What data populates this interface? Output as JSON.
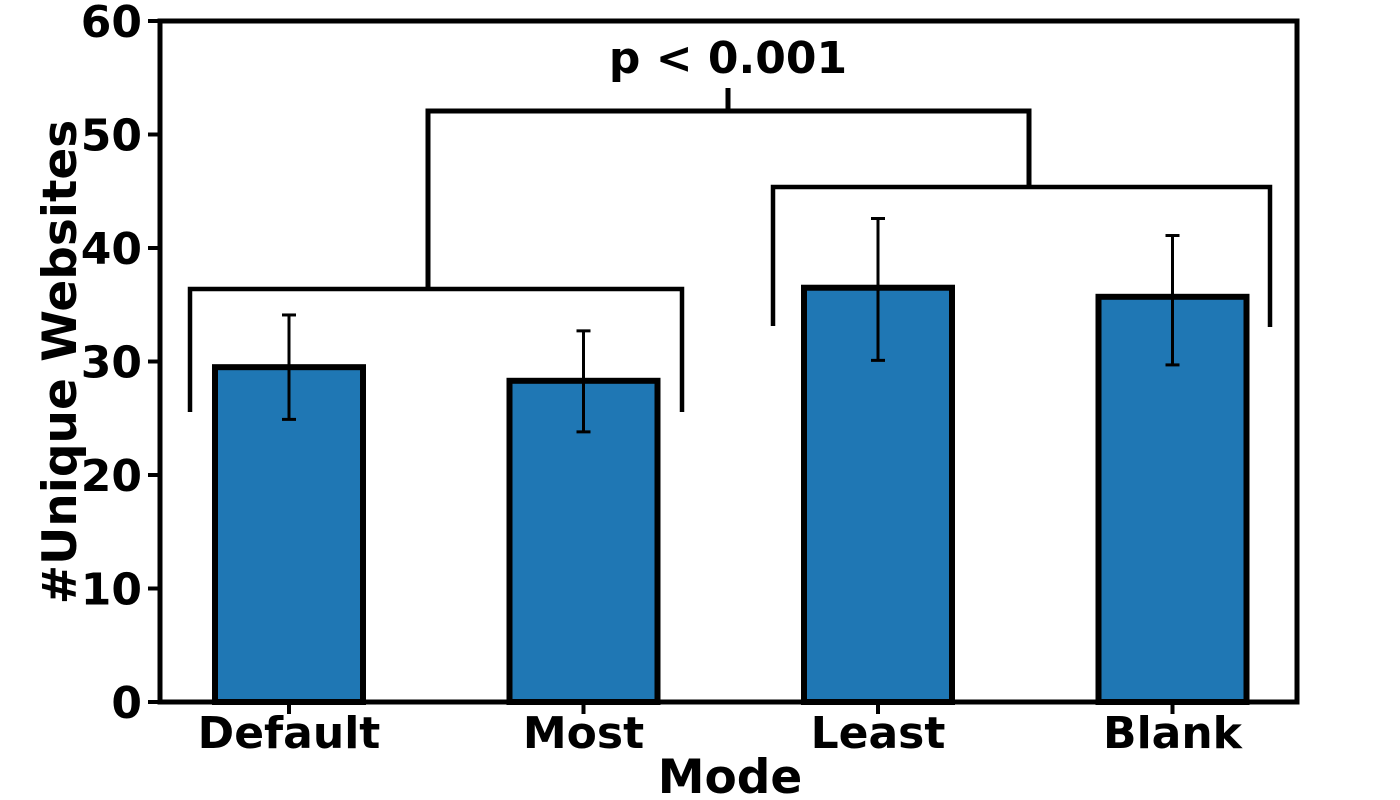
{
  "figure": {
    "background": "#ffffff"
  },
  "chart_data": {
    "type": "bar",
    "title": "",
    "xlabel": "Mode",
    "ylabel": "#Unique Websites",
    "categories": [
      "Default",
      "Most",
      "Least",
      "Blank"
    ],
    "values": [
      29.5,
      28.3,
      36.5,
      35.7
    ],
    "error_bars": {
      "lower": [
        24.9,
        23.8,
        30.1,
        29.7
      ],
      "upper": [
        34.1,
        32.7,
        42.6,
        41.1
      ]
    },
    "ylim": [
      0,
      60
    ],
    "yticks": [
      0,
      10,
      20,
      30,
      40,
      50,
      60
    ],
    "bar_color": "#1f77b4",
    "bar_edge_color": "#000000",
    "grid": false,
    "legend": "none",
    "annotation": {
      "label": "p < 0.001",
      "groups_compared": [
        [
          "Default",
          "Most"
        ],
        [
          "Least",
          "Blank"
        ]
      ]
    }
  }
}
